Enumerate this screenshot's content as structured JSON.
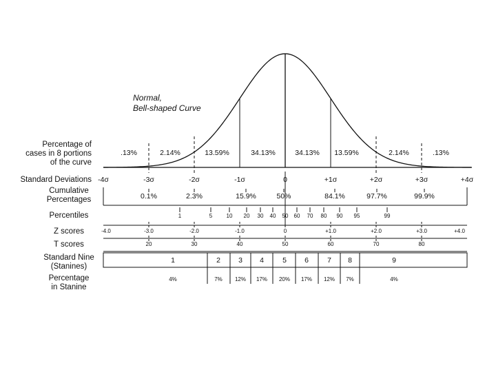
{
  "curve_label": [
    "Normal,",
    "Bell-shaped Curve"
  ],
  "rows": [
    {
      "label": [
        "Percentage of",
        "cases in 8 portions",
        "of the curve"
      ],
      "items": [
        ".13%",
        "2.14%",
        "13.59%",
        "34.13%",
        "34.13%",
        "13.59%",
        "2.14%",
        ".13%"
      ]
    },
    {
      "label": [
        "Standard Deviations"
      ],
      "items": [
        "-4σ",
        "-3σ",
        "-2σ",
        "-1σ",
        "0",
        "+1σ",
        "+2σ",
        "+3σ",
        "+4σ"
      ]
    },
    {
      "label": [
        "Cumulative",
        "Percentages"
      ],
      "items": [
        "0.1%",
        "2.3%",
        "15.9%",
        "50%",
        "84.1%",
        "97.7%",
        "99.9%"
      ]
    },
    {
      "label": [
        "Percentiles"
      ],
      "items": [
        "1",
        "5",
        "10",
        "20",
        "30",
        "40",
        "50",
        "60",
        "70",
        "80",
        "90",
        "95",
        "99"
      ]
    },
    {
      "label": [
        "Z scores"
      ],
      "items": [
        "-4.0",
        "-3.0",
        "-2.0",
        "-1.0",
        "0",
        "+1.0",
        "+2.0",
        "+3.0",
        "+4.0"
      ]
    },
    {
      "label": [
        "T scores"
      ],
      "items": [
        "20",
        "30",
        "40",
        "50",
        "60",
        "70",
        "80"
      ]
    },
    {
      "label": [
        "Standard Nine",
        "(Stanines)"
      ],
      "items": [
        "1",
        "2",
        "3",
        "4",
        "5",
        "6",
        "7",
        "8",
        "9"
      ]
    },
    {
      "label": [
        "Percentage",
        "in Stanine"
      ],
      "items": [
        "4%",
        "7%",
        "12%",
        "17%",
        "20%",
        "17%",
        "12%",
        "7%",
        "4%"
      ]
    }
  ]
}
